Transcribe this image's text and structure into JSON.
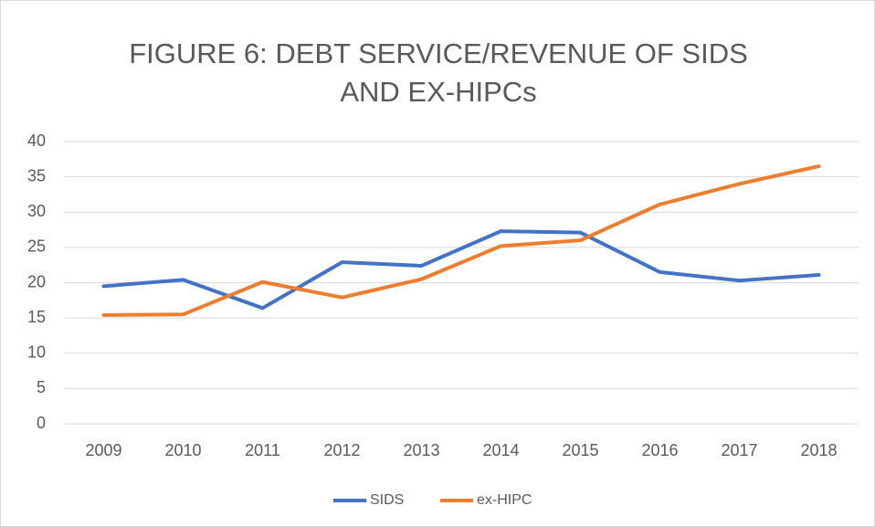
{
  "chart_data": {
    "type": "line",
    "title": "FIGURE 6: DEBT SERVICE/REVENUE OF SIDS AND EX-HIPCs",
    "categories": [
      "2009",
      "2010",
      "2011",
      "2012",
      "2013",
      "2014",
      "2015",
      "2016",
      "2017",
      "2018"
    ],
    "series": [
      {
        "name": "SIDS",
        "color": "#4472c4",
        "values": [
          19.5,
          20.4,
          16.4,
          22.9,
          22.4,
          27.3,
          27.1,
          21.5,
          20.3,
          21.1
        ]
      },
      {
        "name": "ex-HIPC",
        "color": "#ed7d31",
        "values": [
          15.4,
          15.5,
          20.1,
          17.9,
          20.5,
          25.2,
          26.0,
          31.1,
          34.0,
          36.5
        ]
      }
    ],
    "ylim": [
      0,
      40
    ],
    "yticks": [
      0,
      5,
      10,
      15,
      20,
      25,
      30,
      35,
      40
    ],
    "grid": true,
    "legend": "bottom"
  }
}
